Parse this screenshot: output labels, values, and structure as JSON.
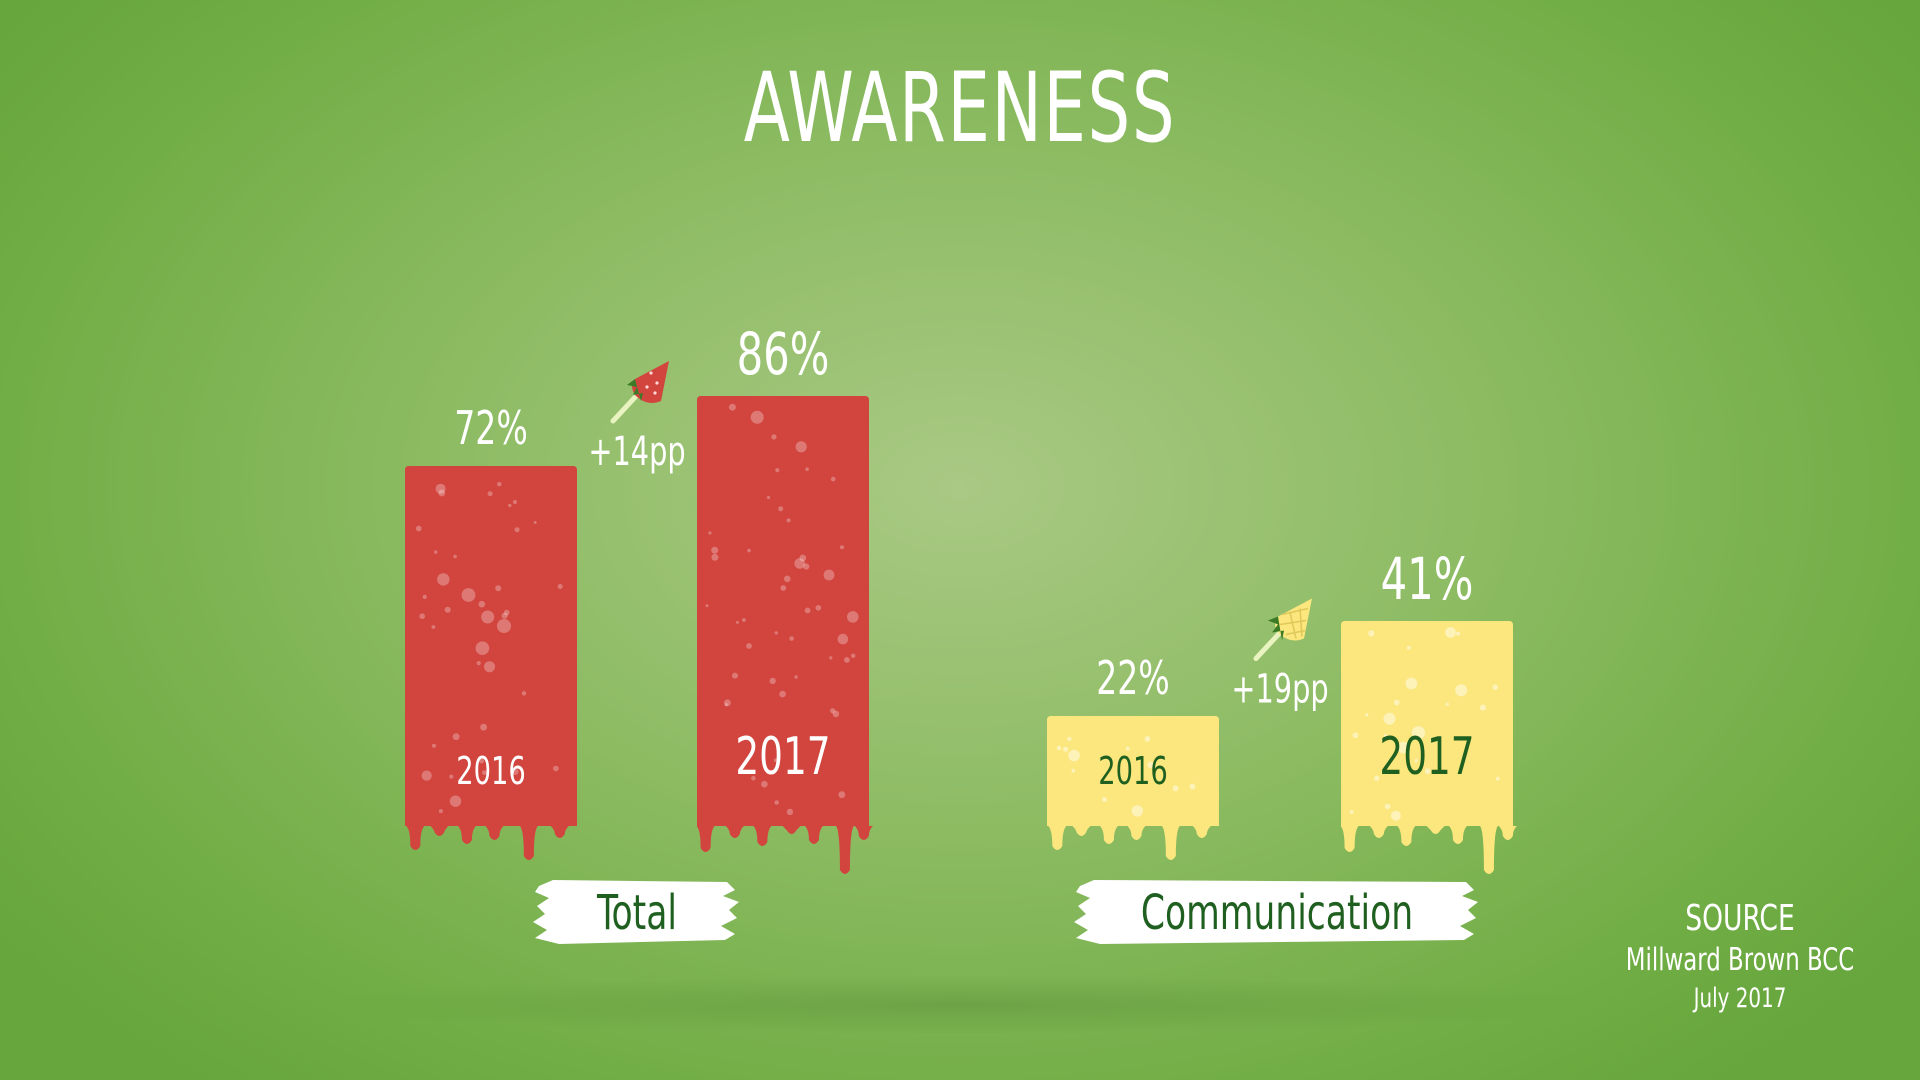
{
  "chart_data": {
    "type": "bar",
    "title": "AWARENESS",
    "groups": [
      {
        "name": "Total",
        "categories": [
          "2016",
          "2017"
        ],
        "values": [
          72,
          86
        ],
        "value_labels": [
          "72%",
          "86%"
        ],
        "change_label": "+14pp",
        "color": "#d2453f",
        "label_color": "#ffffff",
        "icon": "strawberry-icon"
      },
      {
        "name": "Communication",
        "categories": [
          "2016",
          "2017"
        ],
        "values": [
          22,
          41
        ],
        "value_labels": [
          "22%",
          "41%"
        ],
        "change_label": "+19pp",
        "color": "#fbe77e",
        "label_color": "#1f5f1f",
        "icon": "pineapple-icon"
      }
    ],
    "ylim": [
      0,
      100
    ],
    "grid": false
  },
  "source": {
    "heading": "SOURCE",
    "name": "Millward Brown BCC",
    "date": "July 2017"
  },
  "colors": {
    "background": "#8cbb62",
    "group_label_text": "#1f5f1f"
  }
}
